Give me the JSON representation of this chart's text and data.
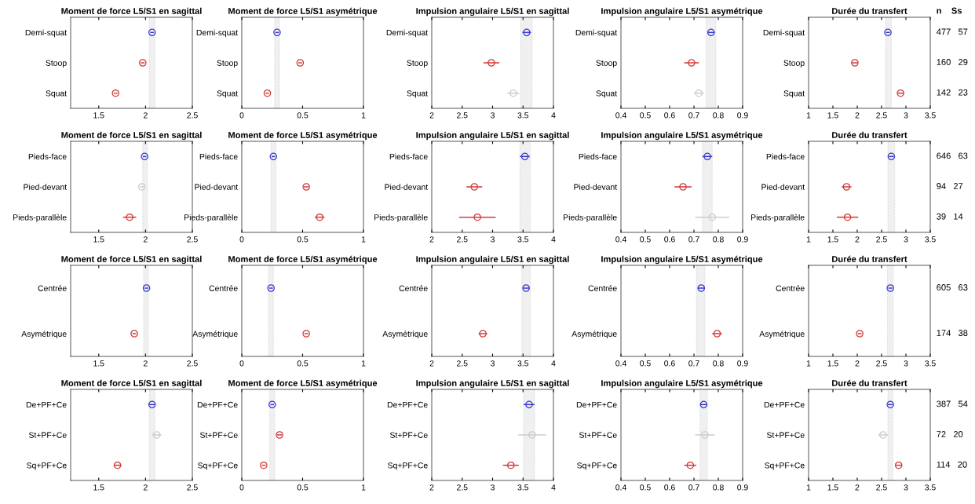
{
  "chart_data": [
    {
      "type": "scatter",
      "orientation": "horizontal",
      "marker": "circle",
      "title": "Moment de force L5/S1 en sagittal",
      "categories": [
        "Demi-squat",
        "Stoop",
        "Squat"
      ],
      "values": [
        2.07,
        1.97,
        1.68
      ],
      "errors": [
        0.02,
        0.02,
        0.02
      ],
      "colors": [
        "#3a3ad0",
        "#d03a3a",
        "#d03a3a"
      ],
      "xlim": [
        1.2,
        2.5
      ],
      "xticks": [
        1.5,
        2,
        2.5
      ],
      "bands": [
        {
          "axis": "x",
          "from": 2.04,
          "to": 2.1,
          "color": "#f0f0f0"
        }
      ]
    },
    {
      "type": "scatter",
      "orientation": "horizontal",
      "marker": "circle",
      "title": "Moment de force L5/S1 asymétrique",
      "categories": [
        "Demi-squat",
        "Stoop",
        "Squat"
      ],
      "values": [
        0.29,
        0.48,
        0.21
      ],
      "errors": [
        0.015,
        0.015,
        0.015
      ],
      "colors": [
        "#3a3ad0",
        "#d03a3a",
        "#d03a3a"
      ],
      "xlim": [
        0,
        1
      ],
      "xticks": [
        0,
        0.5,
        1
      ],
      "bands": [
        {
          "axis": "x",
          "from": 0.27,
          "to": 0.31,
          "color": "#f0f0f0"
        }
      ]
    },
    {
      "type": "scatter",
      "orientation": "horizontal",
      "marker": "circle",
      "title": "Impulsion angulaire L5/S1 en sagittal",
      "categories": [
        "Demi-squat",
        "Stoop",
        "Squat"
      ],
      "values": [
        3.56,
        2.98,
        3.34
      ],
      "errors": [
        0.07,
        0.13,
        0.1
      ],
      "colors": [
        "#3a3ad0",
        "#d03a3a",
        "#cccccc"
      ],
      "xlim": [
        2,
        4
      ],
      "xticks": [
        2,
        2.5,
        3,
        3.5,
        4
      ],
      "bands": [
        {
          "axis": "x",
          "from": 3.46,
          "to": 3.65,
          "color": "#f0f0f0"
        }
      ]
    },
    {
      "type": "scatter",
      "orientation": "horizontal",
      "marker": "circle",
      "title": "Impulsion angulaire L5/S1 asymétrique",
      "categories": [
        "Demi-squat",
        "Stoop",
        "Squat"
      ],
      "values": [
        0.77,
        0.69,
        0.72
      ],
      "errors": [
        0.015,
        0.03,
        0.02
      ],
      "colors": [
        "#3a3ad0",
        "#d03a3a",
        "#cccccc"
      ],
      "xlim": [
        0.4,
        0.9
      ],
      "xticks": [
        0.4,
        0.5,
        0.6,
        0.7,
        0.8,
        0.9
      ],
      "bands": [
        {
          "axis": "x",
          "from": 0.75,
          "to": 0.79,
          "color": "#f0f0f0"
        }
      ]
    },
    {
      "type": "scatter",
      "orientation": "horizontal",
      "marker": "circle",
      "title": "Durée du transfert",
      "categories": [
        "Demi-squat",
        "Stoop",
        "Squat"
      ],
      "values": [
        2.63,
        1.95,
        2.89
      ],
      "errors": [
        0.04,
        0.06,
        0.06
      ],
      "colors": [
        "#3a3ad0",
        "#d03a3a",
        "#d03a3a"
      ],
      "xlim": [
        1,
        3.5
      ],
      "xticks": [
        1,
        1.5,
        2,
        2.5,
        3,
        3.5
      ],
      "bands": [
        {
          "axis": "x",
          "from": 2.58,
          "to": 2.7,
          "color": "#f0f0f0"
        }
      ],
      "annotations": [
        "n    Ss",
        "477   57",
        "160   29",
        "142   23"
      ]
    },
    {
      "type": "scatter",
      "orientation": "horizontal",
      "marker": "circle",
      "title": "Moment de force L5/S1 en sagittal",
      "categories": [
        "Pieds-face",
        "Pied-devant",
        "Pieds-parallèle"
      ],
      "values": [
        1.99,
        1.96,
        1.83
      ],
      "errors": [
        0.02,
        0.02,
        0.07
      ],
      "colors": [
        "#3a3ad0",
        "#cccccc",
        "#d03a3a"
      ],
      "xlim": [
        1.2,
        2.5
      ],
      "xticks": [
        1.5,
        2,
        2.5
      ],
      "bands": [
        {
          "axis": "x",
          "from": 1.97,
          "to": 2.02,
          "color": "#f0f0f0"
        }
      ]
    },
    {
      "type": "scatter",
      "orientation": "horizontal",
      "marker": "circle",
      "title": "Moment de force L5/S1 asymétrique",
      "categories": [
        "Pieds-face",
        "Pied-devant",
        "Pieds-parallèle"
      ],
      "values": [
        0.26,
        0.53,
        0.64
      ],
      "errors": [
        0.015,
        0.02,
        0.04
      ],
      "colors": [
        "#3a3ad0",
        "#d03a3a",
        "#d03a3a"
      ],
      "xlim": [
        0,
        1
      ],
      "xticks": [
        0,
        0.5,
        1
      ],
      "bands": [
        {
          "axis": "x",
          "from": 0.24,
          "to": 0.28,
          "color": "#f0f0f0"
        }
      ]
    },
    {
      "type": "scatter",
      "orientation": "horizontal",
      "marker": "circle",
      "title": "Impulsion angulaire L5/S1 en sagittal",
      "categories": [
        "Pieds-face",
        "Pied-devant",
        "Pieds-parallèle"
      ],
      "values": [
        3.53,
        2.7,
        2.75
      ],
      "errors": [
        0.08,
        0.13,
        0.3
      ],
      "colors": [
        "#3a3ad0",
        "#d03a3a",
        "#d03a3a"
      ],
      "xlim": [
        2,
        4
      ],
      "xticks": [
        2,
        2.5,
        3,
        3.5,
        4
      ],
      "bands": [
        {
          "axis": "x",
          "from": 3.45,
          "to": 3.62,
          "color": "#f0f0f0"
        }
      ]
    },
    {
      "type": "scatter",
      "orientation": "horizontal",
      "marker": "circle",
      "title": "Impulsion angulaire L5/S1 asymétrique",
      "categories": [
        "Pieds-face",
        "Pied-devant",
        "Pieds-parallèle"
      ],
      "values": [
        0.755,
        0.655,
        0.775
      ],
      "errors": [
        0.02,
        0.035,
        0.07
      ],
      "colors": [
        "#3a3ad0",
        "#d03a3a",
        "#cccccc"
      ],
      "xlim": [
        0.4,
        0.9
      ],
      "xticks": [
        0.4,
        0.5,
        0.6,
        0.7,
        0.8,
        0.9
      ],
      "bands": [
        {
          "axis": "x",
          "from": 0.735,
          "to": 0.775,
          "color": "#f0f0f0"
        }
      ]
    },
    {
      "type": "scatter",
      "orientation": "horizontal",
      "marker": "circle",
      "title": "Durée du transfert",
      "categories": [
        "Pieds-face",
        "Pied-devant",
        "Pieds-parallèle"
      ],
      "values": [
        2.7,
        1.78,
        1.8
      ],
      "errors": [
        0.05,
        0.1,
        0.22
      ],
      "colors": [
        "#3a3ad0",
        "#d03a3a",
        "#d03a3a"
      ],
      "xlim": [
        1,
        3.5
      ],
      "xticks": [
        1,
        1.5,
        2,
        2.5,
        3,
        3.5
      ],
      "bands": [
        {
          "axis": "x",
          "from": 2.63,
          "to": 2.77,
          "color": "#f0f0f0"
        }
      ],
      "annotations": [
        "646   63",
        "94   27",
        "39   14"
      ]
    },
    {
      "type": "scatter",
      "orientation": "horizontal",
      "marker": "circle",
      "title": "Moment de force L5/S1 en sagittal",
      "categories": [
        "Centrée",
        "Asymétrique"
      ],
      "values": [
        2.01,
        1.88
      ],
      "errors": [
        0.02,
        0.02
      ],
      "colors": [
        "#3a3ad0",
        "#d03a3a"
      ],
      "xlim": [
        1.2,
        2.5
      ],
      "xticks": [
        1.5,
        2,
        2.5
      ],
      "bands": [
        {
          "axis": "x",
          "from": 1.98,
          "to": 2.03,
          "color": "#f0f0f0"
        }
      ]
    },
    {
      "type": "scatter",
      "orientation": "horizontal",
      "marker": "circle",
      "title": "Moment de force L5/S1 asymétrique",
      "categories": [
        "Centrée",
        "Asymétrique"
      ],
      "values": [
        0.24,
        0.53
      ],
      "errors": [
        0.015,
        0.015
      ],
      "colors": [
        "#3a3ad0",
        "#d03a3a"
      ],
      "xlim": [
        0,
        1
      ],
      "xticks": [
        0,
        0.5,
        1
      ],
      "bands": [
        {
          "axis": "x",
          "from": 0.22,
          "to": 0.26,
          "color": "#f0f0f0"
        }
      ]
    },
    {
      "type": "scatter",
      "orientation": "horizontal",
      "marker": "circle",
      "title": "Impulsion angulaire L5/S1 en sagittal",
      "categories": [
        "Centrée",
        "Asymétrique"
      ],
      "values": [
        3.55,
        2.84
      ],
      "errors": [
        0.05,
        0.07
      ],
      "colors": [
        "#3a3ad0",
        "#d03a3a"
      ],
      "xlim": [
        2,
        4
      ],
      "xticks": [
        2,
        2.5,
        3,
        3.5,
        4
      ],
      "bands": [
        {
          "axis": "x",
          "from": 3.48,
          "to": 3.62,
          "color": "#f0f0f0"
        }
      ]
    },
    {
      "type": "scatter",
      "orientation": "horizontal",
      "marker": "circle",
      "title": "Impulsion angulaire L5/S1 asymétrique",
      "categories": [
        "Centrée",
        "Asymétrique"
      ],
      "values": [
        0.73,
        0.795
      ],
      "errors": [
        0.015,
        0.02
      ],
      "colors": [
        "#3a3ad0",
        "#d03a3a"
      ],
      "xlim": [
        0.4,
        0.9
      ],
      "xticks": [
        0.4,
        0.5,
        0.6,
        0.7,
        0.8,
        0.9
      ],
      "bands": [
        {
          "axis": "x",
          "from": 0.71,
          "to": 0.745,
          "color": "#f0f0f0"
        }
      ]
    },
    {
      "type": "scatter",
      "orientation": "horizontal",
      "marker": "circle",
      "title": "Durée du transfert",
      "categories": [
        "Centrée",
        "Asymétrique"
      ],
      "values": [
        2.68,
        2.05
      ],
      "errors": [
        0.04,
        0.04
      ],
      "colors": [
        "#3a3ad0",
        "#d03a3a"
      ],
      "xlim": [
        1,
        3.5
      ],
      "xticks": [
        1,
        1.5,
        2,
        2.5,
        3,
        3.5
      ],
      "bands": [
        {
          "axis": "x",
          "from": 2.62,
          "to": 2.74,
          "color": "#f0f0f0"
        }
      ],
      "annotations": [
        "605   63",
        "174   38"
      ]
    },
    {
      "type": "scatter",
      "orientation": "horizontal",
      "marker": "circle",
      "title": "Moment de force L5/S1 en sagittal",
      "categories": [
        "De+PF+Ce",
        "St+PF+Ce",
        "Sq+PF+Ce"
      ],
      "values": [
        2.07,
        2.12,
        1.7
      ],
      "errors": [
        0.03,
        0.05,
        0.04
      ],
      "colors": [
        "#3a3ad0",
        "#cccccc",
        "#d03a3a"
      ],
      "xlim": [
        1.2,
        2.5
      ],
      "xticks": [
        1.5,
        2,
        2.5
      ],
      "bands": [
        {
          "axis": "x",
          "from": 2.04,
          "to": 2.1,
          "color": "#f0f0f0"
        }
      ]
    },
    {
      "type": "scatter",
      "orientation": "horizontal",
      "marker": "circle",
      "title": "Moment de force L5/S1 asymétrique",
      "categories": [
        "De+PF+Ce",
        "St+PF+Ce",
        "Sq+PF+Ce"
      ],
      "values": [
        0.25,
        0.31,
        0.18
      ],
      "errors": [
        0.015,
        0.02,
        0.015
      ],
      "colors": [
        "#3a3ad0",
        "#d03a3a",
        "#d03a3a"
      ],
      "xlim": [
        0,
        1
      ],
      "xticks": [
        0,
        0.5,
        1
      ],
      "bands": [
        {
          "axis": "x",
          "from": 0.23,
          "to": 0.27,
          "color": "#f0f0f0"
        }
      ]
    },
    {
      "type": "scatter",
      "orientation": "horizontal",
      "marker": "circle",
      "title": "Impulsion angulaire L5/S1 en sagittal",
      "categories": [
        "De+PF+Ce",
        "St+PF+Ce",
        "Sq+PF+Ce"
      ],
      "values": [
        3.6,
        3.65,
        3.3
      ],
      "errors": [
        0.09,
        0.23,
        0.13
      ],
      "colors": [
        "#3a3ad0",
        "#cccccc",
        "#d03a3a"
      ],
      "xlim": [
        2,
        4
      ],
      "xticks": [
        2,
        2.5,
        3,
        3.5,
        4
      ],
      "bands": [
        {
          "axis": "x",
          "from": 3.51,
          "to": 3.69,
          "color": "#f0f0f0"
        }
      ]
    },
    {
      "type": "scatter",
      "orientation": "horizontal",
      "marker": "circle",
      "title": "Impulsion angulaire L5/S1 asymétrique",
      "categories": [
        "De+PF+Ce",
        "St+PF+Ce",
        "Sq+PF+Ce"
      ],
      "values": [
        0.74,
        0.745,
        0.685
      ],
      "errors": [
        0.015,
        0.04,
        0.025
      ],
      "colors": [
        "#3a3ad0",
        "#cccccc",
        "#d03a3a"
      ],
      "xlim": [
        0.4,
        0.9
      ],
      "xticks": [
        0.4,
        0.5,
        0.6,
        0.7,
        0.8,
        0.9
      ],
      "bands": [
        {
          "axis": "x",
          "from": 0.725,
          "to": 0.755,
          "color": "#f0f0f0"
        }
      ]
    },
    {
      "type": "scatter",
      "orientation": "horizontal",
      "marker": "circle",
      "title": "Durée du transfert",
      "categories": [
        "De+PF+Ce",
        "St+PF+Ce",
        "Sq+PF+Ce"
      ],
      "values": [
        2.68,
        2.53,
        2.85
      ],
      "errors": [
        0.05,
        0.1,
        0.07
      ],
      "colors": [
        "#3a3ad0",
        "#cccccc",
        "#d03a3a"
      ],
      "xlim": [
        1,
        3.5
      ],
      "xticks": [
        1,
        1.5,
        2,
        2.5,
        3,
        3.5
      ],
      "bands": [
        {
          "axis": "x",
          "from": 2.63,
          "to": 2.73,
          "color": "#f0f0f0"
        }
      ],
      "annotations": [
        "387   54",
        "72   20",
        "114   20"
      ]
    }
  ]
}
